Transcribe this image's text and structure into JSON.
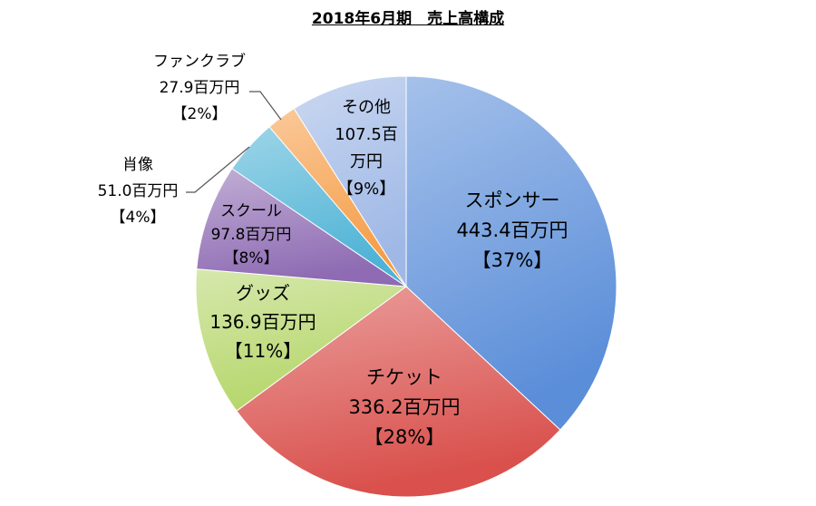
{
  "chart_data": {
    "type": "pie",
    "title": "2018年6月期　売上高構成",
    "unit": "百万円",
    "slices": [
      {
        "name": "スポンサー",
        "value": 443.4,
        "value_label": "443.4百万円",
        "percent_label": "【37%】",
        "color": "#5B8ED9"
      },
      {
        "name": "チケット",
        "value": 336.2,
        "value_label": "336.2百万円",
        "percent_label": "【28%】",
        "color": "#D9504C"
      },
      {
        "name": "グッズ",
        "value": 136.9,
        "value_label": "136.9百万円",
        "percent_label": "【11%】",
        "color": "#B5D66A"
      },
      {
        "name": "スクール",
        "value": 97.8,
        "value_label": "97.8百万円",
        "percent_label": "【8%】",
        "color": "#8E6BB3"
      },
      {
        "name": "肖像",
        "value": 51.0,
        "value_label": "51.0百万円",
        "percent_label": "【4%】",
        "color": "#4EB3D6"
      },
      {
        "name": "ファンクラブ",
        "value": 27.9,
        "value_label": "27.9百万円",
        "percent_label": "【2%】",
        "color": "#F59D47"
      },
      {
        "name": "その他",
        "value": 107.5,
        "value_label_lines": [
          "107.5百",
          "万円"
        ],
        "percent_label": "【9%】",
        "color": "#9FB8E6"
      }
    ]
  }
}
